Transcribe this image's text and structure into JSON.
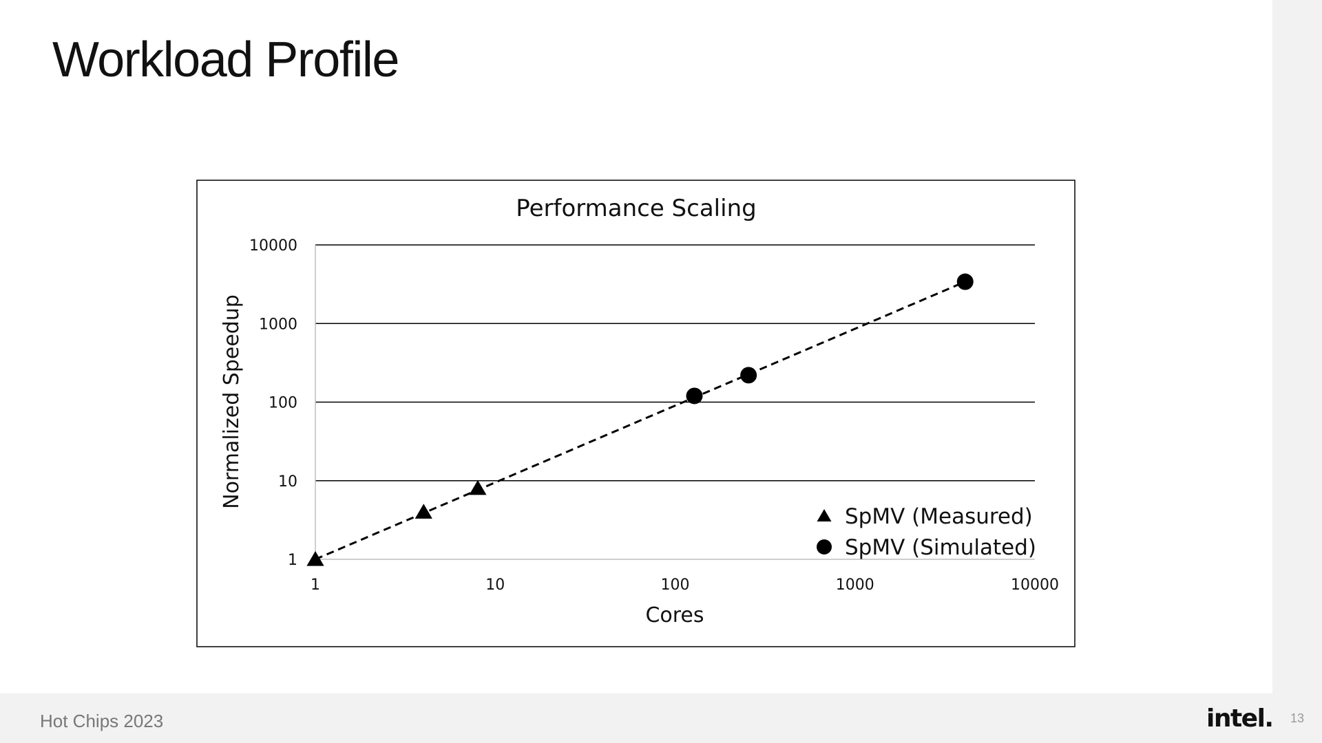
{
  "slide": {
    "title": "Workload Profile",
    "footer": "Hot Chips 2023",
    "logo": "intel.",
    "page_number": "13"
  },
  "chart_data": {
    "type": "scatter",
    "title": "Performance Scaling",
    "xlabel": "Cores",
    "ylabel": "Normalized Speedup",
    "x_scale": "log",
    "y_scale": "log",
    "xlim": [
      1,
      10000
    ],
    "ylim": [
      1,
      10000
    ],
    "x_ticks": [
      "1",
      "10",
      "100",
      "1000",
      "10000"
    ],
    "y_ticks": [
      "1",
      "10",
      "100",
      "1000",
      "10000"
    ],
    "grid": "horizontal",
    "legend_position": "bottom-right",
    "series": [
      {
        "name": "SpMV (Measured)",
        "marker": "triangle",
        "points": [
          {
            "x": 1,
            "y": 1
          },
          {
            "x": 4,
            "y": 4
          },
          {
            "x": 8,
            "y": 8
          }
        ]
      },
      {
        "name": "SpMV (Simulated)",
        "marker": "circle",
        "points": [
          {
            "x": 128,
            "y": 120
          },
          {
            "x": 256,
            "y": 220
          },
          {
            "x": 4096,
            "y": 3400
          }
        ]
      }
    ],
    "trendline": {
      "style": "dashed",
      "from": {
        "x": 1,
        "y": 1
      },
      "to": {
        "x": 4096,
        "y": 3400
      }
    },
    "colors": {
      "marker": "#000000",
      "grid": "#000000",
      "frame": "#000000"
    }
  }
}
